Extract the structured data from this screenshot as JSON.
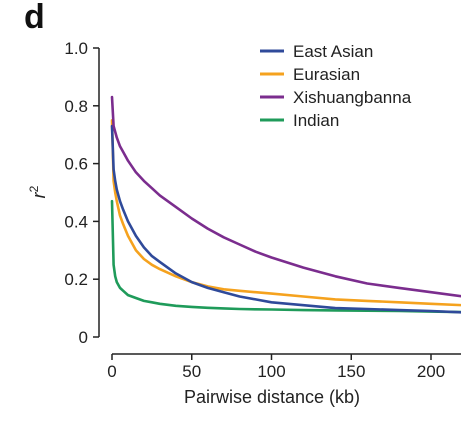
{
  "panel_label": "d",
  "chart_data": {
    "type": "line",
    "title": "",
    "xlabel": "Pairwise distance (kb)",
    "ylabel": "r",
    "ylabel_superscript": "2",
    "xlim": [
      -7,
      220
    ],
    "ylim": [
      0,
      1.0
    ],
    "xticks": [
      0,
      50,
      100,
      150,
      200
    ],
    "yticks": [
      0,
      0.2,
      0.4,
      0.6,
      0.8,
      1.0
    ],
    "ytick_labels": [
      "0",
      "0.2",
      "0.4",
      "0.6",
      "0.8",
      "1.0"
    ],
    "grid": false,
    "legend_position": "top-right",
    "x": [
      0,
      1,
      2,
      3,
      5,
      7,
      10,
      15,
      20,
      25,
      30,
      40,
      50,
      60,
      70,
      80,
      90,
      100,
      120,
      140,
      160,
      180,
      200,
      220
    ],
    "series": [
      {
        "name": "East Asian",
        "color": "#2f4a9a",
        "values": [
          0.73,
          0.58,
          0.54,
          0.51,
          0.47,
          0.44,
          0.4,
          0.35,
          0.31,
          0.28,
          0.26,
          0.22,
          0.19,
          0.17,
          0.155,
          0.14,
          0.13,
          0.12,
          0.11,
          0.1,
          0.097,
          0.093,
          0.09,
          0.085
        ]
      },
      {
        "name": "Eurasian",
        "color": "#f5a21e",
        "values": [
          0.75,
          0.54,
          0.5,
          0.47,
          0.42,
          0.39,
          0.35,
          0.3,
          0.27,
          0.25,
          0.235,
          0.21,
          0.19,
          0.175,
          0.165,
          0.16,
          0.155,
          0.15,
          0.14,
          0.13,
          0.125,
          0.12,
          0.115,
          0.11
        ]
      },
      {
        "name": "Xishuangbanna",
        "color": "#7b2d8e",
        "values": [
          0.83,
          0.73,
          0.71,
          0.69,
          0.66,
          0.64,
          0.61,
          0.57,
          0.54,
          0.515,
          0.49,
          0.45,
          0.41,
          0.375,
          0.345,
          0.32,
          0.295,
          0.275,
          0.24,
          0.21,
          0.185,
          0.17,
          0.155,
          0.14
        ]
      },
      {
        "name": "Indian",
        "color": "#1f9b5a",
        "values": [
          0.47,
          0.25,
          0.21,
          0.19,
          0.17,
          0.16,
          0.145,
          0.135,
          0.125,
          0.12,
          0.115,
          0.108,
          0.104,
          0.101,
          0.099,
          0.097,
          0.096,
          0.095,
          0.093,
          0.092,
          0.091,
          0.09,
          0.088,
          0.086
        ]
      }
    ]
  }
}
